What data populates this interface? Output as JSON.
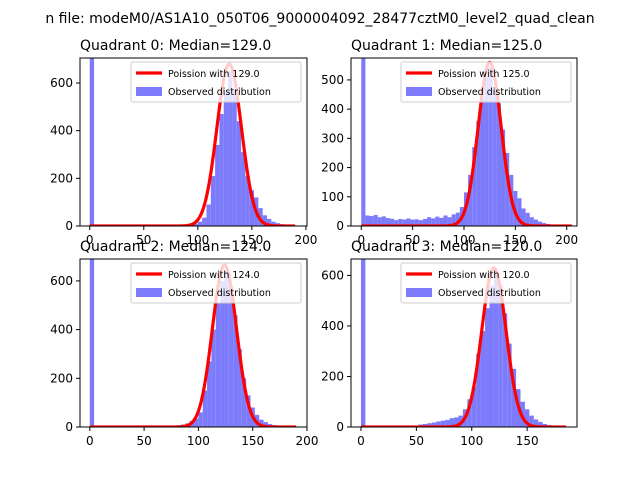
{
  "figure": {
    "suptitle": "n file: modeM0/AS1A10_050T06_9000004092_28477cztM0_level2_quad_clean"
  },
  "colors": {
    "hist": "#7b7bfb",
    "poisson": "#ff0000",
    "axes": "#000000"
  },
  "chart_data": [
    {
      "type": "bar",
      "title": "Quadrant 0: Median=129.0",
      "median": 129.0,
      "legend_position": "upper-right",
      "legend": [
        "Poission with 129.0",
        "Observed distribution"
      ],
      "xlim": [
        -9,
        201
      ],
      "ylim": [
        0,
        705
      ],
      "xticks": [
        0,
        50,
        100,
        150,
        200
      ],
      "yticks": [
        0,
        200,
        400,
        600
      ],
      "bin_width": 4,
      "bins": [
        {
          "x": 0,
          "y": 705
        },
        {
          "x": 76,
          "y": 3
        },
        {
          "x": 80,
          "y": 4
        },
        {
          "x": 84,
          "y": 5
        },
        {
          "x": 88,
          "y": 6
        },
        {
          "x": 92,
          "y": 8
        },
        {
          "x": 96,
          "y": 10
        },
        {
          "x": 100,
          "y": 18
        },
        {
          "x": 104,
          "y": 35
        },
        {
          "x": 108,
          "y": 90
        },
        {
          "x": 112,
          "y": 210
        },
        {
          "x": 116,
          "y": 340
        },
        {
          "x": 120,
          "y": 470
        },
        {
          "x": 124,
          "y": 560
        },
        {
          "x": 128,
          "y": 650
        },
        {
          "x": 132,
          "y": 570
        },
        {
          "x": 136,
          "y": 440
        },
        {
          "x": 140,
          "y": 310
        },
        {
          "x": 144,
          "y": 210
        },
        {
          "x": 148,
          "y": 150
        },
        {
          "x": 152,
          "y": 120
        },
        {
          "x": 156,
          "y": 75
        },
        {
          "x": 160,
          "y": 45
        },
        {
          "x": 164,
          "y": 30
        },
        {
          "x": 168,
          "y": 18
        },
        {
          "x": 172,
          "y": 12
        },
        {
          "x": 176,
          "y": 8
        },
        {
          "x": 180,
          "y": 5
        }
      ],
      "poisson_peak": 680,
      "poisson_range": [
        0,
        190
      ]
    },
    {
      "type": "bar",
      "title": "Quadrant 1: Median=125.0",
      "median": 125.0,
      "legend_position": "upper-right",
      "legend": [
        "Poission with 125.0",
        "Observed distribution"
      ],
      "xlim": [
        -10,
        210
      ],
      "ylim": [
        0,
        575
      ],
      "xticks": [
        0,
        50,
        100,
        150,
        200
      ],
      "yticks": [
        0,
        100,
        200,
        300,
        400,
        500
      ],
      "bin_width": 4,
      "bins": [
        {
          "x": 0,
          "y": 575
        },
        {
          "x": 4,
          "y": 36
        },
        {
          "x": 8,
          "y": 34
        },
        {
          "x": 12,
          "y": 38
        },
        {
          "x": 16,
          "y": 30
        },
        {
          "x": 20,
          "y": 33
        },
        {
          "x": 24,
          "y": 27
        },
        {
          "x": 28,
          "y": 25
        },
        {
          "x": 32,
          "y": 20
        },
        {
          "x": 36,
          "y": 24
        },
        {
          "x": 40,
          "y": 22
        },
        {
          "x": 44,
          "y": 26
        },
        {
          "x": 48,
          "y": 22
        },
        {
          "x": 52,
          "y": 23
        },
        {
          "x": 56,
          "y": 20
        },
        {
          "x": 60,
          "y": 24
        },
        {
          "x": 64,
          "y": 30
        },
        {
          "x": 68,
          "y": 26
        },
        {
          "x": 72,
          "y": 32
        },
        {
          "x": 76,
          "y": 28
        },
        {
          "x": 80,
          "y": 36
        },
        {
          "x": 84,
          "y": 30
        },
        {
          "x": 88,
          "y": 40
        },
        {
          "x": 92,
          "y": 46
        },
        {
          "x": 96,
          "y": 65
        },
        {
          "x": 100,
          "y": 115
        },
        {
          "x": 104,
          "y": 175
        },
        {
          "x": 108,
          "y": 270
        },
        {
          "x": 112,
          "y": 360
        },
        {
          "x": 116,
          "y": 440
        },
        {
          "x": 120,
          "y": 510
        },
        {
          "x": 124,
          "y": 545
        },
        {
          "x": 128,
          "y": 470
        },
        {
          "x": 132,
          "y": 420
        },
        {
          "x": 136,
          "y": 330
        },
        {
          "x": 140,
          "y": 250
        },
        {
          "x": 144,
          "y": 175
        },
        {
          "x": 148,
          "y": 120
        },
        {
          "x": 152,
          "y": 95
        },
        {
          "x": 156,
          "y": 60
        },
        {
          "x": 160,
          "y": 45
        },
        {
          "x": 164,
          "y": 30
        },
        {
          "x": 168,
          "y": 22
        },
        {
          "x": 172,
          "y": 15
        },
        {
          "x": 176,
          "y": 10
        },
        {
          "x": 180,
          "y": 7
        }
      ],
      "poisson_peak": 560,
      "poisson_range": [
        0,
        205
      ]
    },
    {
      "type": "bar",
      "title": "Quadrant 2: Median=124.0",
      "median": 124.0,
      "legend_position": "upper-right",
      "legend": [
        "Poission with 124.0",
        "Observed distribution"
      ],
      "xlim": [
        -9,
        200
      ],
      "ylim": [
        0,
        690
      ],
      "xticks": [
        0,
        50,
        100,
        150,
        200
      ],
      "yticks": [
        0,
        200,
        400,
        600
      ],
      "bin_width": 4,
      "bins": [
        {
          "x": 0,
          "y": 690
        },
        {
          "x": 72,
          "y": 3
        },
        {
          "x": 76,
          "y": 5
        },
        {
          "x": 80,
          "y": 7
        },
        {
          "x": 84,
          "y": 10
        },
        {
          "x": 88,
          "y": 15
        },
        {
          "x": 92,
          "y": 25
        },
        {
          "x": 96,
          "y": 35
        },
        {
          "x": 100,
          "y": 60
        },
        {
          "x": 104,
          "y": 150
        },
        {
          "x": 108,
          "y": 270
        },
        {
          "x": 112,
          "y": 400
        },
        {
          "x": 116,
          "y": 510
        },
        {
          "x": 120,
          "y": 600
        },
        {
          "x": 124,
          "y": 640
        },
        {
          "x": 128,
          "y": 580
        },
        {
          "x": 132,
          "y": 460
        },
        {
          "x": 136,
          "y": 320
        },
        {
          "x": 140,
          "y": 200
        },
        {
          "x": 144,
          "y": 130
        },
        {
          "x": 148,
          "y": 80
        },
        {
          "x": 152,
          "y": 50
        },
        {
          "x": 156,
          "y": 30
        },
        {
          "x": 160,
          "y": 20
        },
        {
          "x": 164,
          "y": 12
        },
        {
          "x": 168,
          "y": 8
        },
        {
          "x": 172,
          "y": 5
        },
        {
          "x": 176,
          "y": 3
        }
      ],
      "poisson_peak": 665,
      "poisson_range": [
        0,
        190
      ]
    },
    {
      "type": "bar",
      "title": "Quadrant 3: Median=120.0",
      "median": 120.0,
      "legend_position": "upper-right",
      "legend": [
        "Poission with 120.0",
        "Observed distribution"
      ],
      "xlim": [
        -9,
        195
      ],
      "ylim": [
        0,
        665
      ],
      "xticks": [
        0,
        50,
        100,
        150
      ],
      "yticks": [
        0,
        200,
        400,
        600
      ],
      "bin_width": 4,
      "bins": [
        {
          "x": 0,
          "y": 665
        },
        {
          "x": 52,
          "y": 10
        },
        {
          "x": 56,
          "y": 12
        },
        {
          "x": 60,
          "y": 15
        },
        {
          "x": 64,
          "y": 18
        },
        {
          "x": 68,
          "y": 22
        },
        {
          "x": 72,
          "y": 25
        },
        {
          "x": 76,
          "y": 28
        },
        {
          "x": 80,
          "y": 35
        },
        {
          "x": 84,
          "y": 38
        },
        {
          "x": 88,
          "y": 45
        },
        {
          "x": 92,
          "y": 70
        },
        {
          "x": 96,
          "y": 110
        },
        {
          "x": 100,
          "y": 160
        },
        {
          "x": 104,
          "y": 290
        },
        {
          "x": 108,
          "y": 380
        },
        {
          "x": 112,
          "y": 470
        },
        {
          "x": 116,
          "y": 560
        },
        {
          "x": 120,
          "y": 600
        },
        {
          "x": 124,
          "y": 560
        },
        {
          "x": 128,
          "y": 450
        },
        {
          "x": 132,
          "y": 330
        },
        {
          "x": 136,
          "y": 230
        },
        {
          "x": 140,
          "y": 150
        },
        {
          "x": 144,
          "y": 100
        },
        {
          "x": 148,
          "y": 70
        },
        {
          "x": 152,
          "y": 45
        },
        {
          "x": 156,
          "y": 30
        },
        {
          "x": 160,
          "y": 20
        },
        {
          "x": 164,
          "y": 12
        },
        {
          "x": 168,
          "y": 8
        },
        {
          "x": 172,
          "y": 5
        }
      ],
      "poisson_peak": 630,
      "poisson_range": [
        0,
        185
      ]
    }
  ]
}
